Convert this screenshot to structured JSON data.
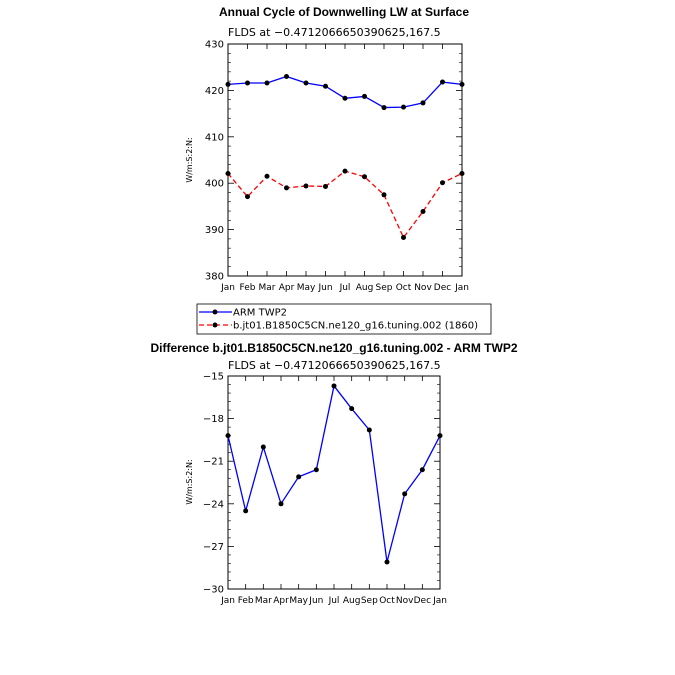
{
  "months": [
    "Jan",
    "Feb",
    "Mar",
    "Apr",
    "May",
    "Jun",
    "Jul",
    "Aug",
    "Sep",
    "Oct",
    "Nov",
    "Dec",
    "Jan"
  ],
  "chart_data": [
    {
      "type": "line",
      "title": "Annual Cycle of Downwelling LW at Surface",
      "subtitle": "FLDS at −0.4712066650390625,167.5",
      "ylabel": "W/m:S:2:N:",
      "ylim": [
        380,
        430
      ],
      "yticks": [
        "380",
        "390",
        "400",
        "410",
        "420",
        "430"
      ],
      "yvalues": [
        380,
        390,
        400,
        410,
        420,
        430
      ],
      "series": [
        {
          "name": "ARM TWP2",
          "color": "#0000ff",
          "dash": "solid",
          "values": [
            421.3,
            421.6,
            421.6,
            423.0,
            421.6,
            420.9,
            418.3,
            418.7,
            416.3,
            416.4,
            417.3,
            421.8,
            421.3
          ]
        },
        {
          "name": "b.jt01.B1850C5CN.ne120_g16.tuning.002 (1860)",
          "color": "#ff0000",
          "dash": "dashed",
          "values": [
            402.1,
            397.1,
            401.5,
            399.0,
            399.4,
            399.3,
            402.6,
            401.4,
            397.5,
            388.3,
            393.9,
            400.1,
            402.1
          ]
        }
      ],
      "grid": false,
      "legend": "below"
    },
    {
      "type": "line",
      "title": "Difference b.jt01.B1850C5CN.ne120_g16.tuning.002 - ARM TWP2",
      "subtitle": "FLDS at −0.4712066650390625,167.5",
      "ylabel": "W/m:S:2:N:",
      "ylim": [
        -30,
        -15
      ],
      "yticks": [
        "−30",
        "−27",
        "−24",
        "−21",
        "−18",
        "−15"
      ],
      "yvalues": [
        -30,
        -27,
        -24,
        -21,
        -18,
        -15
      ],
      "series": [
        {
          "color": "#0000ff",
          "dash": "solid",
          "values": [
            -19.2,
            -24.5,
            -20.0,
            -24.0,
            -22.1,
            -21.6,
            -15.7,
            -17.3,
            -18.8,
            -28.1,
            -23.3,
            -21.6,
            -19.2
          ]
        }
      ],
      "grid": false
    }
  ]
}
